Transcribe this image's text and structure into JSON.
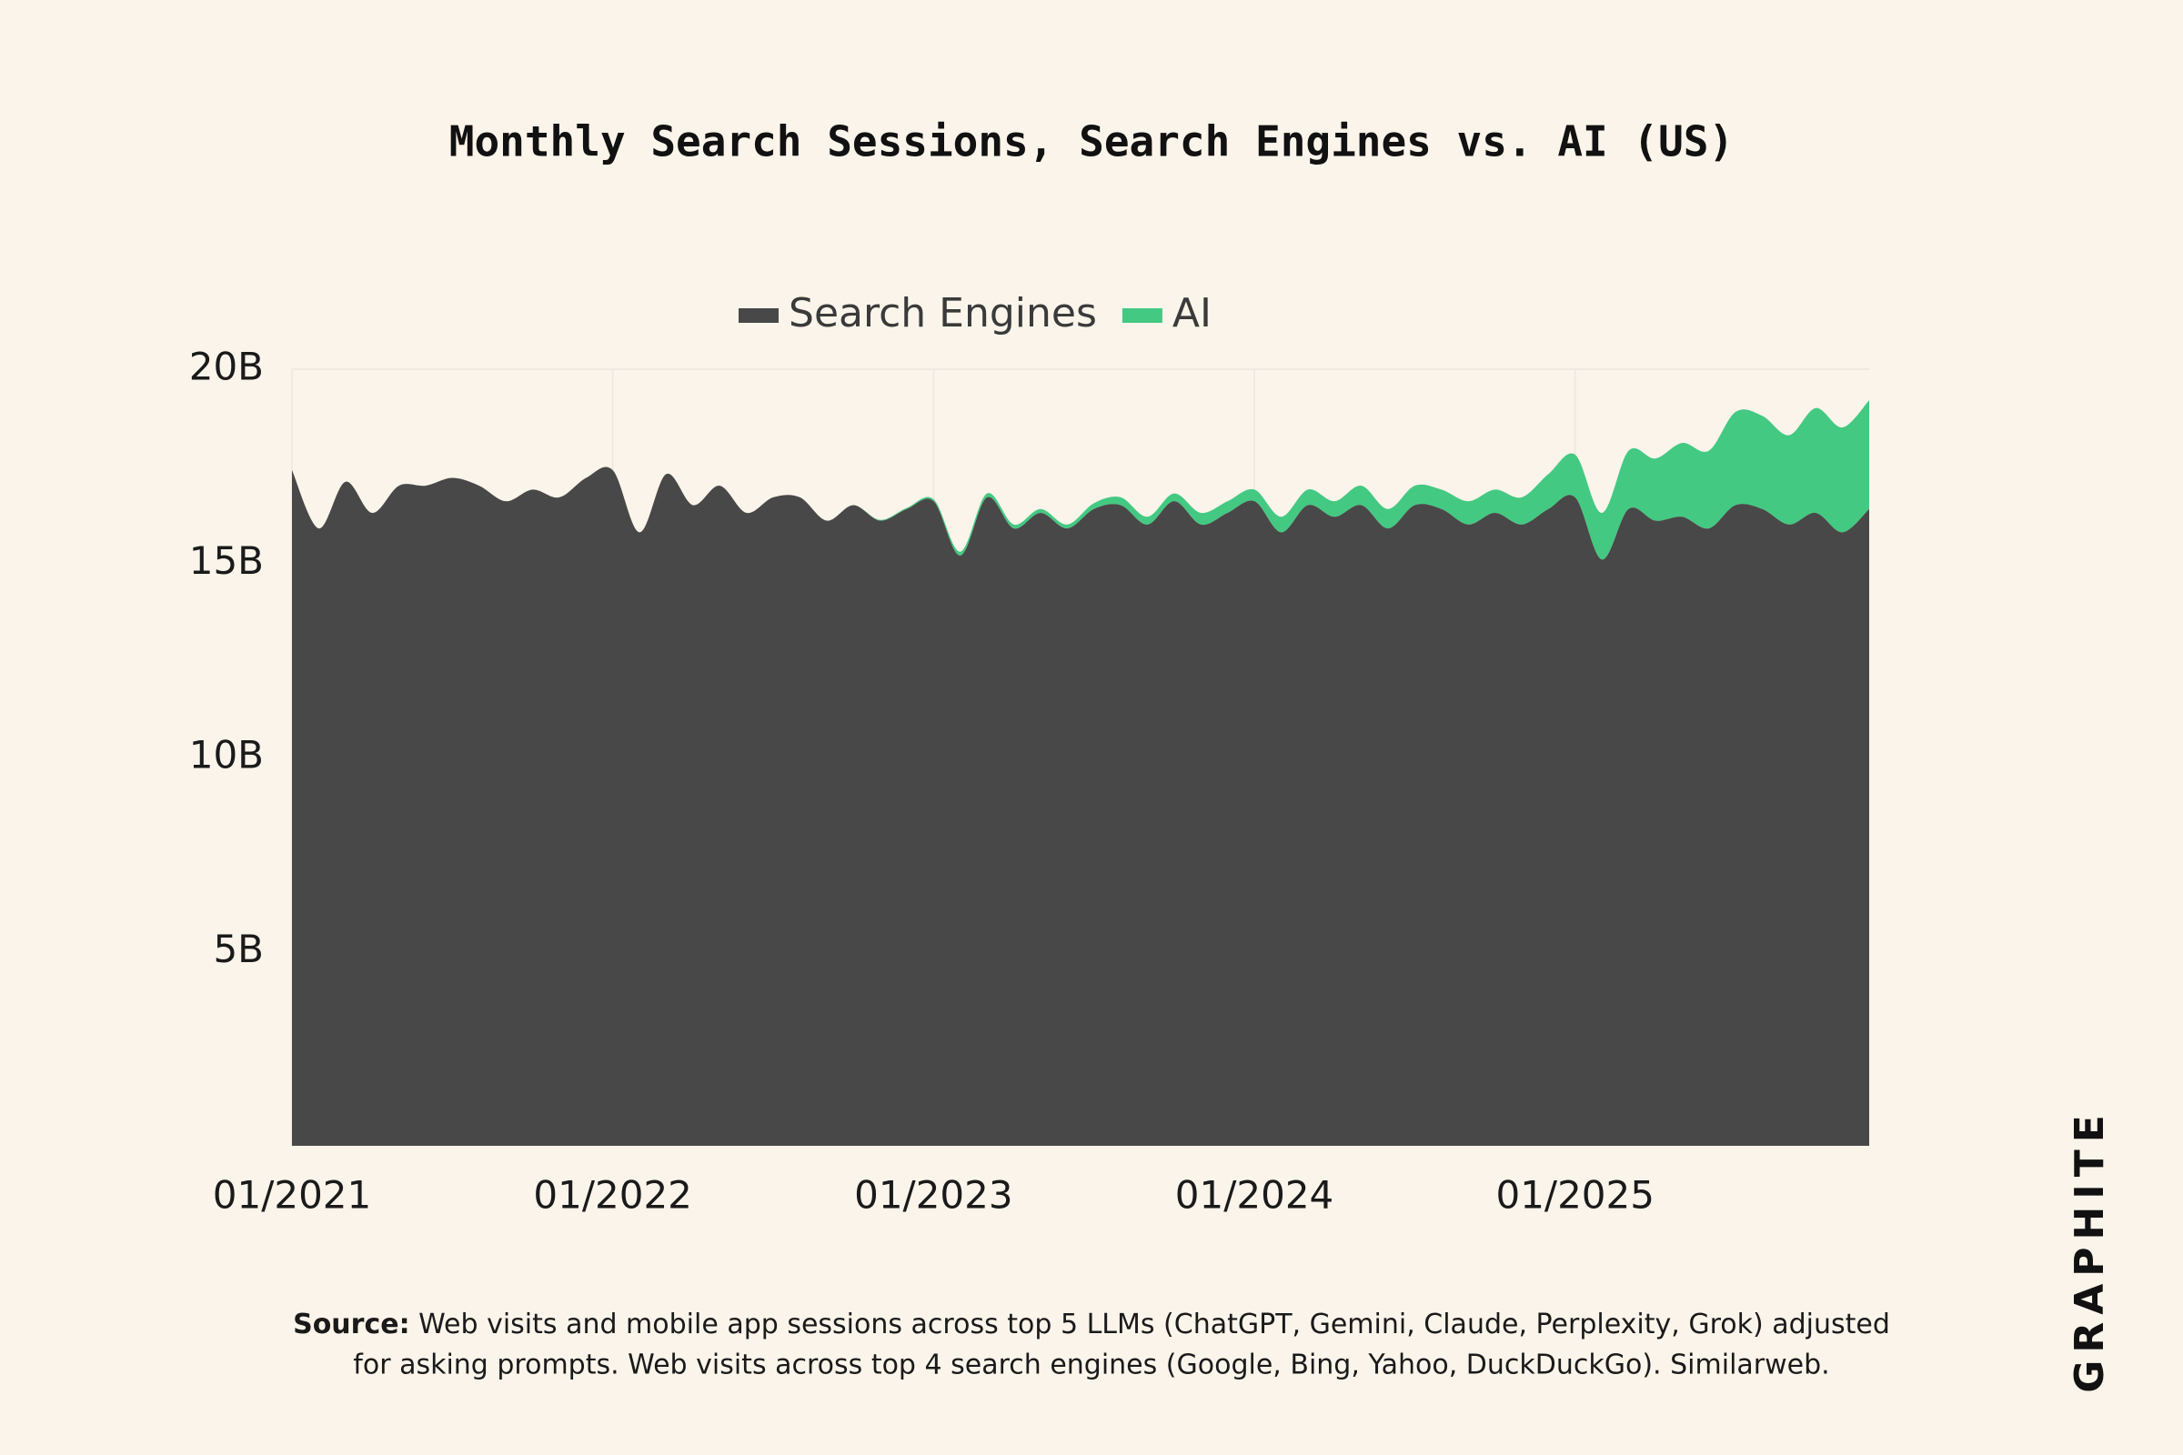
{
  "chart_data": {
    "type": "stacked-area",
    "title": "Monthly Search Sessions, Search Engines vs. AI (US)",
    "categories": [
      "01/2021",
      null,
      null,
      null,
      null,
      null,
      null,
      null,
      null,
      null,
      null,
      null,
      "01/2022",
      null,
      null,
      null,
      null,
      null,
      null,
      null,
      null,
      null,
      null,
      null,
      "01/2023",
      null,
      null,
      null,
      null,
      null,
      null,
      null,
      null,
      null,
      null,
      null,
      "01/2024",
      null,
      null,
      null,
      null,
      null,
      null,
      null,
      null,
      null,
      null,
      null,
      "01/2025",
      null,
      null,
      null,
      null,
      null,
      null,
      null,
      null,
      null,
      null,
      null
    ],
    "series": [
      {
        "name": "Search Engines",
        "color": "#484848",
        "values": [
          17.4,
          15.9,
          17.1,
          16.3,
          17.0,
          17.0,
          17.2,
          17.0,
          16.6,
          16.9,
          16.7,
          17.2,
          17.4,
          15.8,
          17.3,
          16.5,
          17.0,
          16.3,
          16.7,
          16.7,
          16.1,
          16.5,
          16.1,
          16.4,
          16.6,
          15.2,
          16.7,
          15.9,
          16.3,
          15.9,
          16.4,
          16.5,
          16.0,
          16.6,
          16.0,
          16.3,
          16.6,
          15.8,
          16.5,
          16.2,
          16.5,
          15.9,
          16.5,
          16.4,
          16.0,
          16.3,
          16.0,
          16.4,
          16.7,
          15.1,
          16.4,
          16.1,
          16.2,
          15.9,
          16.5,
          16.4,
          16.0,
          16.3,
          15.8,
          16.4
        ]
      },
      {
        "name": "AI",
        "color": "#44c982",
        "values": [
          0,
          0,
          0,
          0,
          0,
          0,
          0,
          0,
          0,
          0,
          0,
          0,
          0,
          0,
          0,
          0,
          0,
          0,
          0,
          0,
          0,
          0,
          0.02,
          0.03,
          0.05,
          0.1,
          0.1,
          0.1,
          0.1,
          0.1,
          0.15,
          0.2,
          0.2,
          0.2,
          0.3,
          0.3,
          0.3,
          0.4,
          0.4,
          0.4,
          0.5,
          0.5,
          0.5,
          0.5,
          0.6,
          0.6,
          0.7,
          0.9,
          1.1,
          1.2,
          1.5,
          1.6,
          1.9,
          2.0,
          2.4,
          2.4,
          2.3,
          2.7,
          2.7,
          2.8
        ]
      }
    ],
    "ylim": [
      0,
      20
    ],
    "yticks": [
      {
        "value": 5,
        "label": "5B"
      },
      {
        "value": 10,
        "label": "10B"
      },
      {
        "value": 15,
        "label": "15B"
      },
      {
        "value": 20,
        "label": "20B"
      }
    ],
    "grid": true,
    "legend": "top",
    "source_label": "Source:",
    "source_lines": [
      "Web visits and mobile app sessions across top 5 LLMs (ChatGPT, Gemini, Claude, Perplexity, Grok) adjusted",
      "for asking prompts. Web visits across top 4 search engines (Google, Bing, Yahoo, DuckDuckGo). Similarweb."
    ],
    "logo": "GRAPHITE"
  }
}
